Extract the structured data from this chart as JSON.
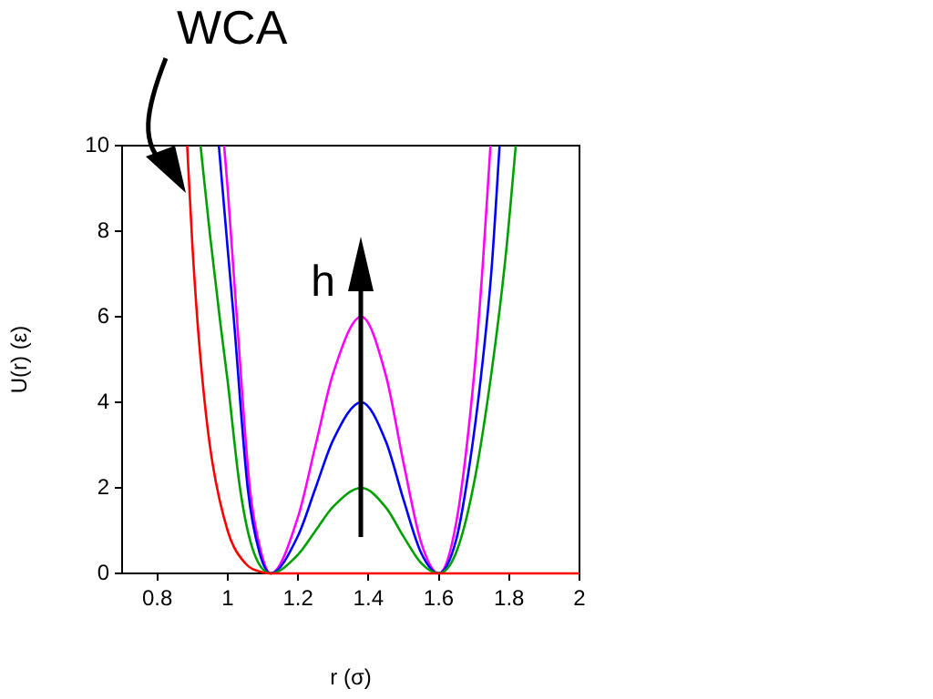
{
  "chart_data": {
    "type": "line",
    "xlabel": "r (σ)",
    "ylabel": "U(r) (ε)",
    "xlim": [
      0.7,
      2
    ],
    "xticks": [
      0.8,
      1,
      1.2,
      1.4,
      1.6,
      1.8,
      2
    ],
    "ylim": [
      0,
      10
    ],
    "yticks": [
      0,
      2,
      4,
      6,
      8,
      10
    ],
    "grid": false,
    "legend": false,
    "marker": "none",
    "line_style": "solid",
    "annotations": [
      "WCA",
      "h"
    ],
    "series": [
      {
        "color": "#ff0000",
        "x": [
          0.885,
          0.9,
          0.92,
          0.95,
          1.0,
          1.05,
          1.1,
          1.1225,
          1.5,
          2
        ],
        "values": [
          10,
          7.64,
          5.3,
          2.96,
          1,
          0.24,
          0.02,
          0,
          0,
          0
        ]
      },
      {
        "color": "#00a000",
        "x": [
          0.923,
          0.95,
          0.98,
          1.0,
          1.035,
          1.07,
          1.1225,
          1.2,
          1.25,
          1.3,
          1.38,
          1.45,
          1.5,
          1.55,
          1.6,
          1.65,
          1.7,
          1.75,
          1.79,
          1.819
        ],
        "values": [
          10,
          7.9,
          5.8,
          4.5,
          2,
          0.6,
          0,
          0.44,
          1.0,
          1.56,
          2,
          1.54,
          0.86,
          0.24,
          0,
          0.5,
          2.1,
          4.7,
          7.4,
          10
        ]
      },
      {
        "color": "#0000ff",
        "x": [
          0.975,
          1.0,
          1.017,
          1.057,
          1.09,
          1.1225,
          1.2,
          1.25,
          1.3,
          1.38,
          1.45,
          1.5,
          1.55,
          1.6,
          1.65,
          1.685,
          1.72,
          1.75,
          1.773
        ],
        "values": [
          10,
          7.6,
          6,
          2,
          0.5,
          0,
          0.88,
          2,
          3.12,
          4,
          3.08,
          1.72,
          0.48,
          0,
          0.8,
          2.4,
          4.6,
          7.1,
          10
        ]
      },
      {
        "color": "#ff00ff",
        "x": [
          0.99,
          1.0,
          1.026,
          1.063,
          1.095,
          1.1225,
          1.2,
          1.25,
          1.3,
          1.38,
          1.45,
          1.5,
          1.55,
          1.6,
          1.65,
          1.7,
          1.725,
          1.747
        ],
        "values": [
          10,
          9,
          6,
          2,
          0.5,
          0,
          1.32,
          3,
          4.68,
          6,
          4.62,
          2.58,
          0.72,
          0,
          1.2,
          4.6,
          7.2,
          10
        ]
      }
    ]
  }
}
